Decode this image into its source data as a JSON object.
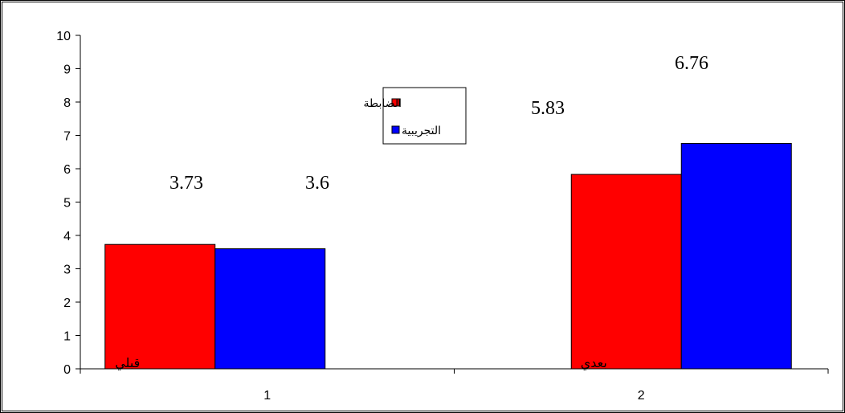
{
  "chart_data": {
    "type": "bar",
    "categories": [
      "1",
      "2"
    ],
    "category_inner_labels": [
      "قبلي",
      "بعدي"
    ],
    "series": [
      {
        "name": "الضابطة",
        "color": "#ff0000",
        "values": [
          3.73,
          5.83
        ]
      },
      {
        "name": "التجريبية",
        "color": "#0000ff",
        "values": [
          3.6,
          6.76
        ]
      }
    ],
    "data_labels": [
      [
        "3.73",
        "3.6"
      ],
      [
        "5.83",
        "6.76"
      ]
    ],
    "ylim": [
      0,
      10
    ],
    "yticks": [
      "0",
      "1",
      "2",
      "3",
      "4",
      "5",
      "6",
      "7",
      "8",
      "9",
      "10"
    ],
    "grid": false,
    "legend_position": "top-center",
    "title": "",
    "xlabel": "",
    "ylabel": ""
  }
}
